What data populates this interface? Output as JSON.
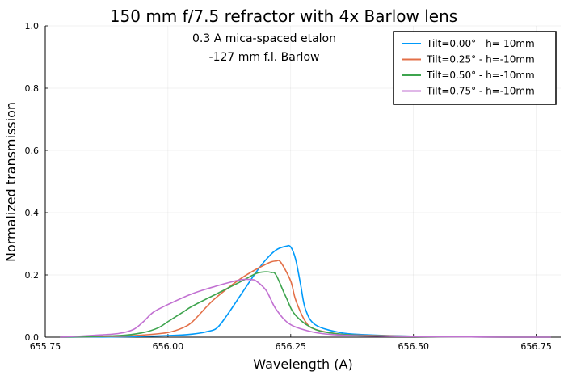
{
  "chart_data": {
    "type": "line",
    "title": "150 mm f/7.5 refractor with 4x Barlow lens",
    "annotations": [
      "0.3 A mica-spaced etalon",
      "-127 mm f.l. Barlow"
    ],
    "xlabel": "Wavelength (A)",
    "ylabel": "Normalized transmission",
    "xlim": [
      655.75,
      656.8
    ],
    "ylim": [
      0,
      1.0
    ],
    "xticks": [
      655.75,
      656.0,
      656.25,
      656.5,
      656.75
    ],
    "xtick_labels": [
      "655.75",
      "656.00",
      "656.25",
      "656.50",
      "656.75"
    ],
    "yticks": [
      0,
      0.2,
      0.4,
      0.6,
      0.8,
      1.0
    ],
    "ytick_labels": [
      "0.0",
      "0.2",
      "0.4",
      "0.6",
      "0.8",
      "1.0"
    ],
    "grid": true,
    "legend_position": "top-right",
    "series": [
      {
        "name": "Tilt=0.00° - h=-10mm",
        "color": "#009AFA",
        "x": [
          655.78,
          655.9,
          656.0,
          656.05,
          656.08,
          656.1,
          656.12,
          656.15,
          656.18,
          656.2,
          656.22,
          656.24,
          656.25,
          656.26,
          656.27,
          656.28,
          656.3,
          656.35,
          656.4,
          656.5,
          656.6,
          656.7,
          656.78
        ],
        "y": [
          0.0,
          0.001,
          0.005,
          0.01,
          0.018,
          0.03,
          0.07,
          0.14,
          0.21,
          0.25,
          0.28,
          0.292,
          0.29,
          0.25,
          0.17,
          0.09,
          0.04,
          0.015,
          0.008,
          0.003,
          0.001,
          0.0,
          0.0
        ]
      },
      {
        "name": "Tilt=0.25° - h=-10mm",
        "color": "#E36F47",
        "x": [
          655.78,
          655.9,
          655.95,
          656.0,
          656.03,
          656.05,
          656.08,
          656.1,
          656.15,
          656.2,
          656.22,
          656.23,
          656.25,
          656.26,
          656.28,
          656.3,
          656.35,
          656.4,
          656.5,
          656.6,
          656.7,
          656.78
        ],
        "y": [
          0.0,
          0.003,
          0.007,
          0.015,
          0.03,
          0.05,
          0.1,
          0.13,
          0.19,
          0.235,
          0.245,
          0.24,
          0.18,
          0.12,
          0.05,
          0.025,
          0.01,
          0.006,
          0.003,
          0.001,
          0.0,
          0.0
        ]
      },
      {
        "name": "Tilt=0.50° - h=-10mm",
        "color": "#3EA44E",
        "x": [
          655.78,
          655.9,
          655.95,
          655.98,
          656.0,
          656.03,
          656.05,
          656.1,
          656.15,
          656.18,
          656.2,
          656.21,
          656.22,
          656.24,
          656.26,
          656.3,
          656.35,
          656.4,
          656.5,
          656.6,
          656.7,
          656.78
        ],
        "y": [
          0.0,
          0.005,
          0.015,
          0.03,
          0.05,
          0.08,
          0.1,
          0.14,
          0.18,
          0.205,
          0.21,
          0.208,
          0.2,
          0.13,
          0.07,
          0.025,
          0.01,
          0.005,
          0.002,
          0.001,
          0.0,
          0.0
        ]
      },
      {
        "name": "Tilt=0.75° - h=-10mm",
        "color": "#C271D2",
        "x": [
          655.78,
          655.85,
          655.9,
          655.93,
          655.95,
          655.97,
          656.0,
          656.05,
          656.1,
          656.13,
          656.15,
          656.17,
          656.18,
          656.2,
          656.22,
          656.25,
          656.3,
          656.35,
          656.4,
          656.5,
          656.6,
          656.7,
          656.78
        ],
        "y": [
          0.0,
          0.006,
          0.012,
          0.025,
          0.05,
          0.08,
          0.105,
          0.14,
          0.165,
          0.178,
          0.185,
          0.185,
          0.18,
          0.15,
          0.09,
          0.04,
          0.015,
          0.007,
          0.004,
          0.002,
          0.001,
          0.0,
          0.0
        ]
      }
    ]
  }
}
